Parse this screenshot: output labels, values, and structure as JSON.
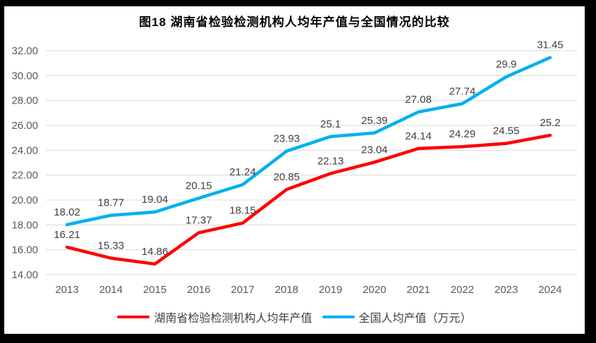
{
  "chart_data": {
    "type": "line",
    "title": "图18 湖南省检验检测机构人均年产值与全国情况的比较",
    "categories": [
      "2013",
      "2014",
      "2015",
      "2016",
      "2017",
      "2018",
      "2019",
      "2020",
      "2021",
      "2022",
      "2023",
      "2024"
    ],
    "series": [
      {
        "name": "湖南省检验检测机构人均年产值",
        "color": "#FF0000",
        "values": [
          16.21,
          15.33,
          14.86,
          17.37,
          18.15,
          20.85,
          22.13,
          23.04,
          24.14,
          24.29,
          24.55,
          25.2
        ],
        "labels": [
          "16.21",
          "15.33",
          "14.86",
          "17.37",
          "18.15",
          "20.85",
          "22.13",
          "23.04",
          "24.14",
          "24.29",
          "24.55",
          "25.2"
        ]
      },
      {
        "name": "全国人均产值（万元）",
        "color": "#00B0F0",
        "values": [
          18.02,
          18.77,
          19.04,
          20.15,
          21.24,
          23.93,
          25.1,
          25.39,
          27.08,
          27.74,
          29.9,
          31.45
        ],
        "labels": [
          "18.02",
          "18.77",
          "19.04",
          "20.15",
          "21.24",
          "23.93",
          "25.1",
          "25.39",
          "27.08",
          "27.74",
          "29.9",
          "31.45"
        ]
      }
    ],
    "ylim": [
      14,
      32
    ],
    "ytick_step": 2,
    "ytick_labels": [
      "14.00",
      "16.00",
      "18.00",
      "20.00",
      "22.00",
      "24.00",
      "26.00",
      "28.00",
      "30.00",
      "32.00"
    ],
    "grid": true,
    "legend_position": "bottom"
  },
  "colors": {
    "frame": "#000000",
    "background": "#FFFFFF",
    "gridline": "#D9D9D9",
    "tick_label": "#595959",
    "data_label": "#404040",
    "title": "#000000"
  }
}
